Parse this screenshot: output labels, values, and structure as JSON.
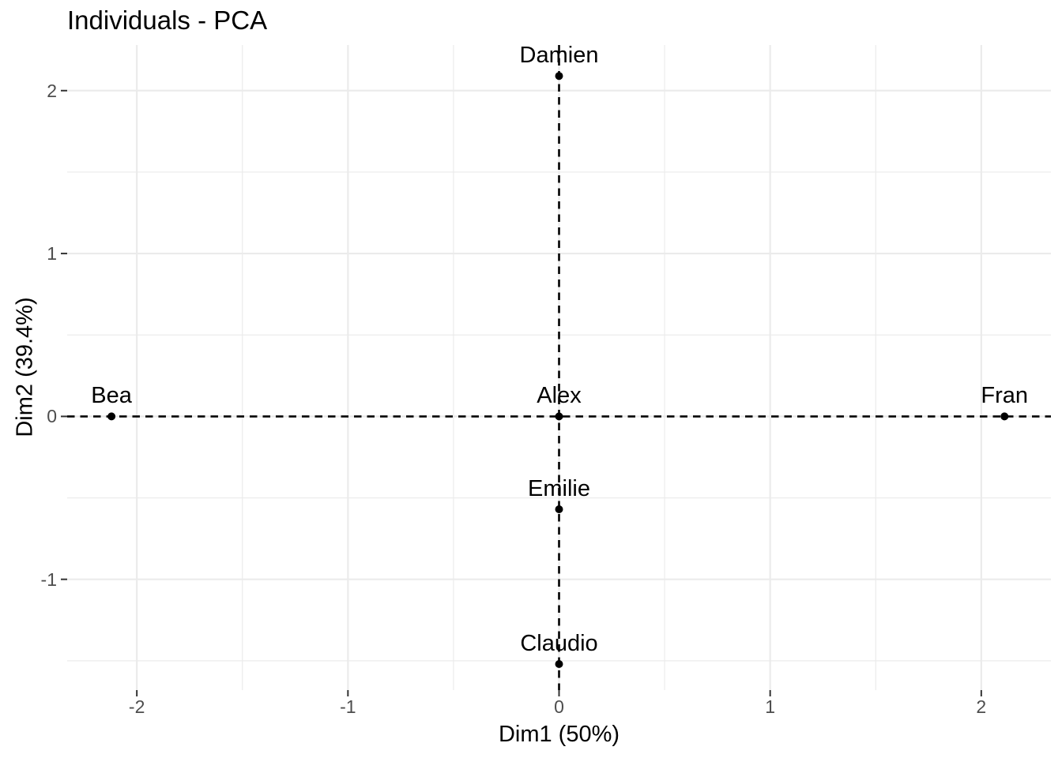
{
  "chart_data": {
    "type": "scatter",
    "title": "Individuals - PCA",
    "xlabel": "Dim1 (50%)",
    "ylabel": "Dim2 (39.4%)",
    "xlim": [
      -2.33,
      2.33
    ],
    "ylim": [
      -1.68,
      2.28
    ],
    "x_ticks": [
      -2,
      -1,
      0,
      1,
      2
    ],
    "y_ticks": [
      -1,
      0,
      1,
      2
    ],
    "x_minor_ticks": [
      -1.5,
      -0.5,
      0.5,
      1.5
    ],
    "y_minor_ticks": [
      -1.5,
      -0.5,
      0.5,
      1.5
    ],
    "grid": true,
    "legend": "none",
    "reference_lines": {
      "vline_x": 0,
      "hline_y": 0,
      "linetype": "dashed"
    },
    "points": [
      {
        "name": "Alex",
        "x": 0,
        "y": 0
      },
      {
        "name": "Bea",
        "x": -2.12,
        "y": 0
      },
      {
        "name": "Claudio",
        "x": 0,
        "y": -1.52
      },
      {
        "name": "Damien",
        "x": 0,
        "y": 2.09
      },
      {
        "name": "Emilie",
        "x": 0,
        "y": -0.57
      },
      {
        "name": "Fran",
        "x": 2.11,
        "y": 0
      }
    ],
    "colors": {
      "background": "#FFFFFF",
      "grid": "#EBEBEB",
      "points": "#000000",
      "point_labels": "#000000",
      "axis_text": "#4D4D4D",
      "axis_ticks": "#333333",
      "reference_lines": "#000000",
      "title": "#000000"
    }
  }
}
